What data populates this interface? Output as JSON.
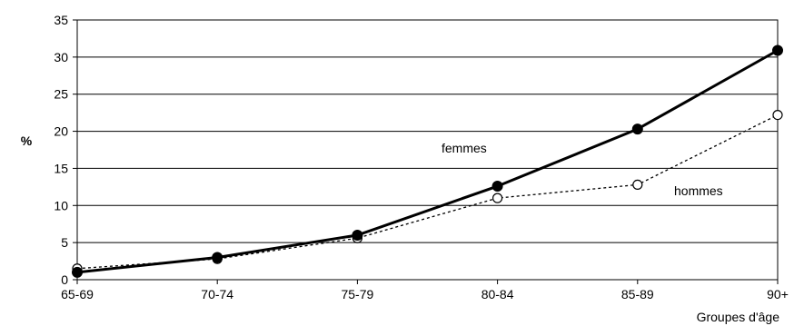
{
  "chart_data": {
    "type": "line",
    "title": "",
    "xlabel": "Groupes d'âge",
    "ylabel": "%",
    "categories": [
      "65-69",
      "70-74",
      "75-79",
      "80-84",
      "85-89",
      "90+"
    ],
    "ylim": [
      0,
      35
    ],
    "yticks": [
      0,
      5,
      10,
      15,
      20,
      25,
      30,
      35
    ],
    "grid": true,
    "legend": "none (inline labels)",
    "series": [
      {
        "name": "femmes",
        "style": "solid",
        "marker": "filled-circle",
        "color": "#000000",
        "values": [
          1.0,
          3.0,
          6.0,
          12.6,
          20.3,
          30.9
        ]
      },
      {
        "name": "hommes",
        "style": "dotted",
        "marker": "open-circle",
        "color": "#000000",
        "values": [
          1.5,
          2.8,
          5.6,
          11.0,
          12.8,
          22.2
        ]
      }
    ]
  }
}
